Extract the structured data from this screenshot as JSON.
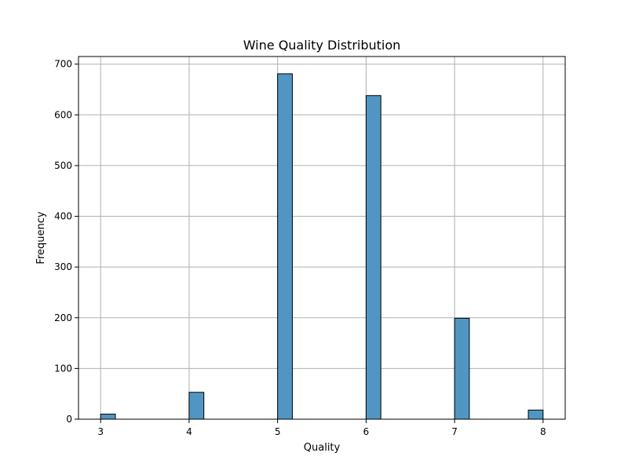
{
  "chart_data": {
    "type": "bar",
    "title": "Wine Quality Distribution",
    "xlabel": "Quality",
    "ylabel": "Frequency",
    "bars": [
      {
        "x_start": 3.0,
        "x_end": 3.1667,
        "value": 10
      },
      {
        "x_start": 4.0,
        "x_end": 4.1667,
        "value": 53
      },
      {
        "x_start": 5.0,
        "x_end": 5.1667,
        "value": 681
      },
      {
        "x_start": 6.0,
        "x_end": 6.1667,
        "value": 638
      },
      {
        "x_start": 7.0,
        "x_end": 7.1667,
        "value": 199
      },
      {
        "x_start": 7.8333,
        "x_end": 8.0,
        "value": 18
      }
    ],
    "xlim": [
      2.75,
      8.25
    ],
    "ylim": [
      0,
      715
    ],
    "xticks": [
      3,
      4,
      5,
      6,
      7,
      8
    ],
    "yticks": [
      0,
      100,
      200,
      300,
      400,
      500,
      600,
      700
    ],
    "grid": true,
    "bar_color": "#5196c3",
    "edge_color": "#000000",
    "grid_color": "#b0b0b0"
  }
}
